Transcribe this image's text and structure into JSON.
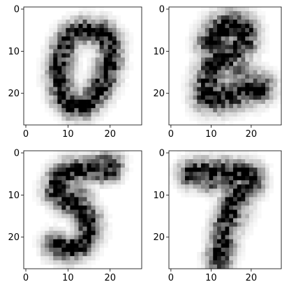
{
  "chart_data": [
    {
      "type": "heatmap",
      "image": "digit-0",
      "grid_size": [
        28,
        28
      ],
      "xlim": [
        -0.5,
        27.5
      ],
      "ylim": [
        27.5,
        -0.5
      ],
      "x_ticks": [
        0,
        10,
        20
      ],
      "y_ticks": [
        0,
        10,
        20
      ],
      "x_tick_labels": [
        "0",
        "10",
        "20"
      ],
      "y_tick_labels": [
        "0",
        "10",
        "20"
      ],
      "colormap": "gray_r",
      "grid": false
    },
    {
      "type": "heatmap",
      "image": "digit-2",
      "grid_size": [
        28,
        28
      ],
      "xlim": [
        -0.5,
        27.5
      ],
      "ylim": [
        27.5,
        -0.5
      ],
      "x_ticks": [
        0,
        10,
        20
      ],
      "y_ticks": [
        0,
        10,
        20
      ],
      "x_tick_labels": [
        "0",
        "10",
        "20"
      ],
      "y_tick_labels": [
        "0",
        "10",
        "20"
      ],
      "colormap": "gray_r",
      "grid": false
    },
    {
      "type": "heatmap",
      "image": "digit-5",
      "grid_size": [
        28,
        28
      ],
      "xlim": [
        -0.5,
        27.5
      ],
      "ylim": [
        27.5,
        -0.5
      ],
      "x_ticks": [
        0,
        10,
        20
      ],
      "y_ticks": [
        0,
        10,
        20
      ],
      "x_tick_labels": [
        "0",
        "10",
        "20"
      ],
      "y_tick_labels": [
        "0",
        "10",
        "20"
      ],
      "colormap": "gray_r",
      "grid": false
    },
    {
      "type": "heatmap",
      "image": "digit-7",
      "grid_size": [
        28,
        28
      ],
      "xlim": [
        -0.5,
        27.5
      ],
      "ylim": [
        27.5,
        -0.5
      ],
      "x_ticks": [
        0,
        10,
        20
      ],
      "y_ticks": [
        0,
        10,
        20
      ],
      "x_tick_labels": [
        "0",
        "10",
        "20"
      ],
      "y_tick_labels": [
        "0",
        "10",
        "20"
      ],
      "colormap": "gray_r",
      "grid": false
    }
  ],
  "colors": {
    "axis": "#000000",
    "background": "#ffffff",
    "ink": "#000000"
  }
}
